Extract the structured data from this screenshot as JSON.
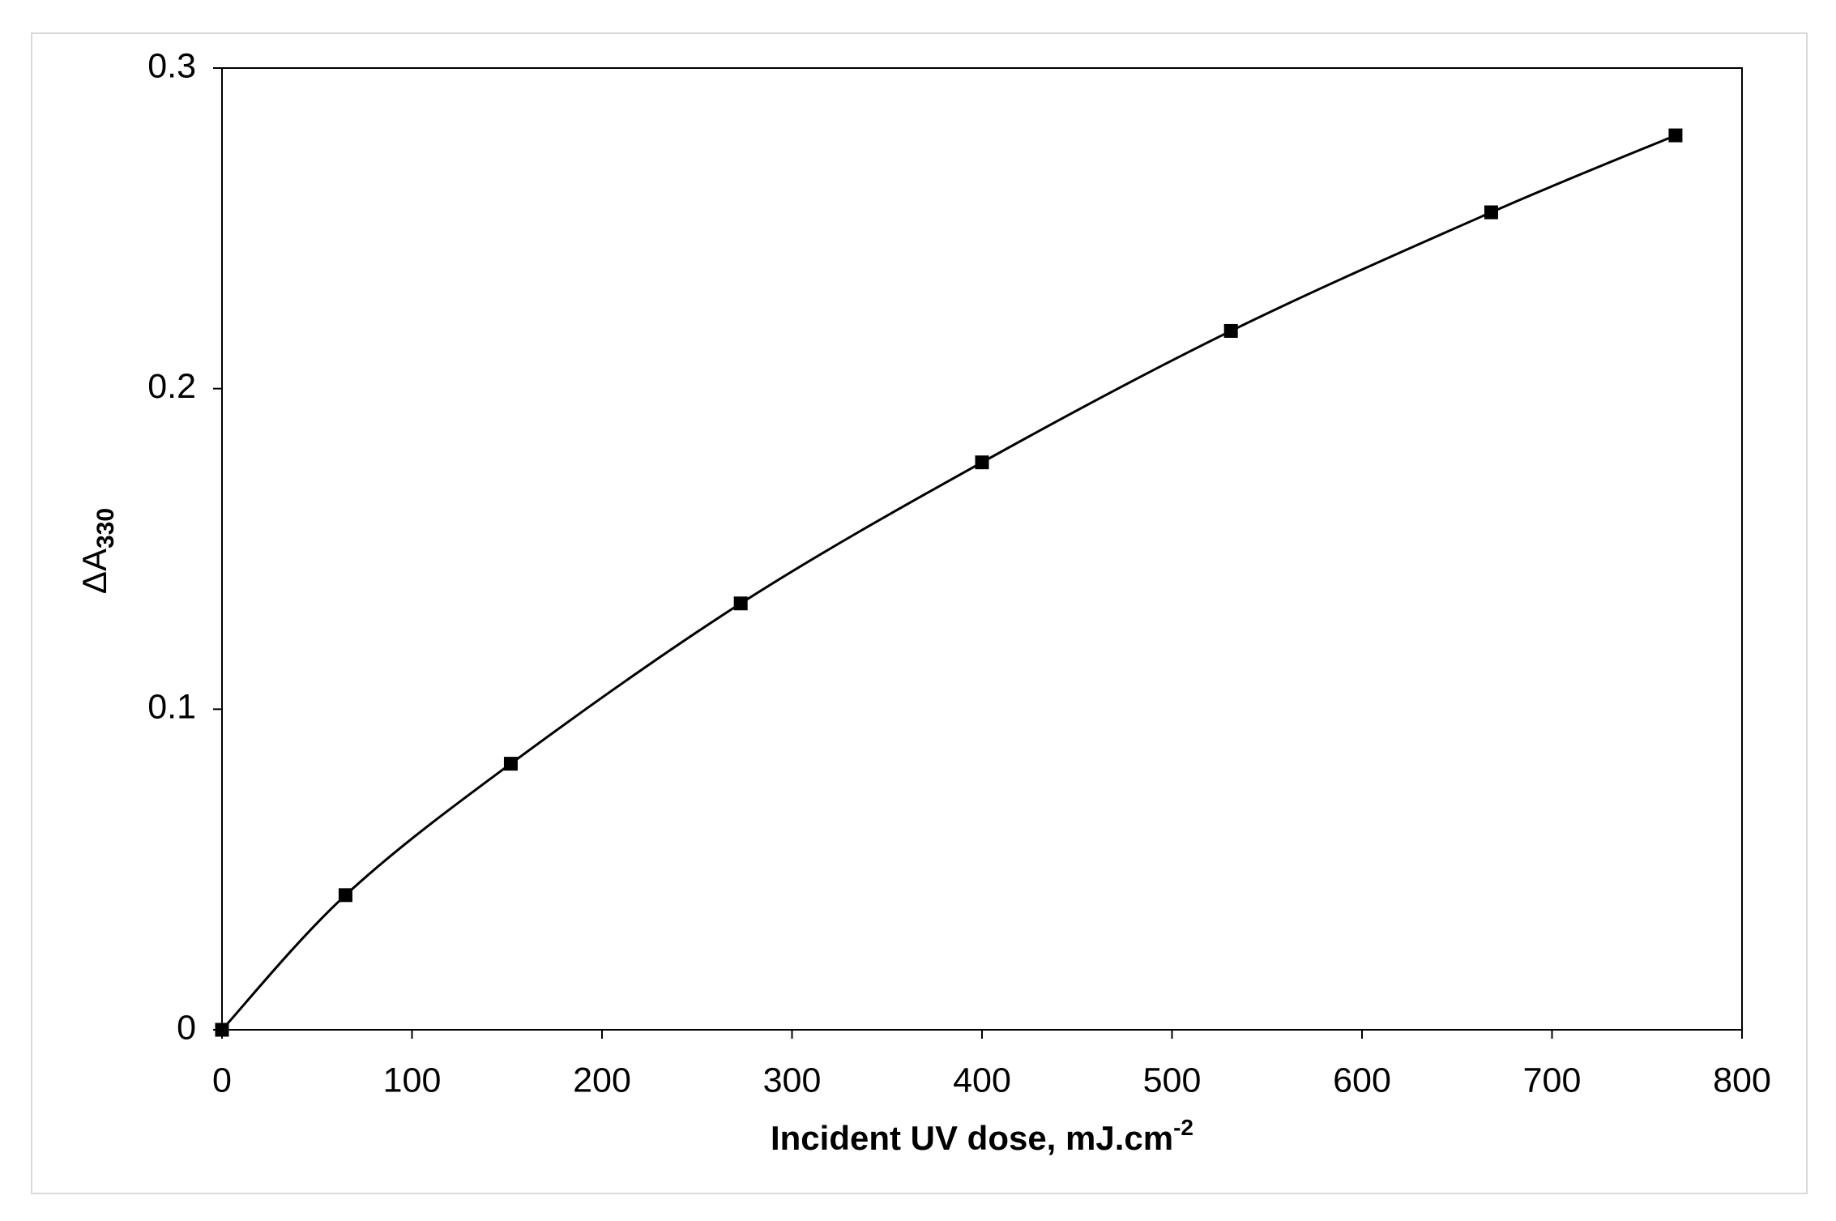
{
  "chart_data": {
    "type": "scatter-line",
    "xlabel": "Incident UV dose, mJ.cm",
    "xlabel_sup": "-2",
    "ylabel": "ΔA",
    "ylabel_sub": "330",
    "x": [
      0,
      65,
      152,
      273,
      400,
      531,
      668,
      765
    ],
    "values": [
      0,
      0.042,
      0.083,
      0.133,
      0.177,
      0.218,
      0.255,
      0.279
    ],
    "color": "#000000",
    "smooth": true,
    "xlim": [
      0,
      800
    ],
    "xticks": [
      0,
      100,
      200,
      300,
      400,
      500,
      600,
      700,
      800
    ],
    "ylim": [
      0,
      0.3
    ],
    "yticks": [
      0,
      0.1,
      0.2,
      0.3
    ]
  }
}
